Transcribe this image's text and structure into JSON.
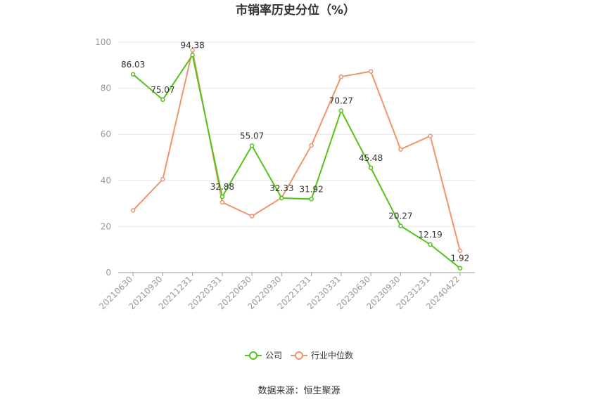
{
  "chart_data": {
    "type": "line",
    "title": "市销率历史分位（%）",
    "categories": [
      "20210630",
      "20210930",
      "20211231",
      "20220331",
      "20220630",
      "20220930",
      "20221231",
      "20230331",
      "20230630",
      "20230930",
      "20231231",
      "20240422"
    ],
    "series": [
      {
        "name": "公司",
        "color": "#52c41a",
        "values": [
          86.03,
          75.07,
          94.38,
          32.88,
          55.07,
          32.33,
          31.92,
          70.27,
          45.48,
          20.27,
          12.19,
          1.92
        ],
        "labels": [
          "86.03",
          "75.07",
          "94.38",
          "32.88",
          "55.07",
          "32.33",
          "31.92",
          "70.27",
          "45.48",
          "20.27",
          "12.19",
          "1.92"
        ]
      },
      {
        "name": "行业中位数",
        "color": "#f0956a",
        "values": [
          27,
          40.5,
          96.5,
          30.5,
          24.5,
          32.5,
          55.2,
          85,
          87.3,
          53.5,
          59.3,
          9.5
        ]
      }
    ],
    "ylim": [
      0,
      100
    ],
    "yticks": [
      "0",
      "20",
      "40",
      "60",
      "80",
      "100"
    ],
    "grid": true,
    "legend_position": "bottom",
    "source": "数据来源：恒生聚源"
  }
}
